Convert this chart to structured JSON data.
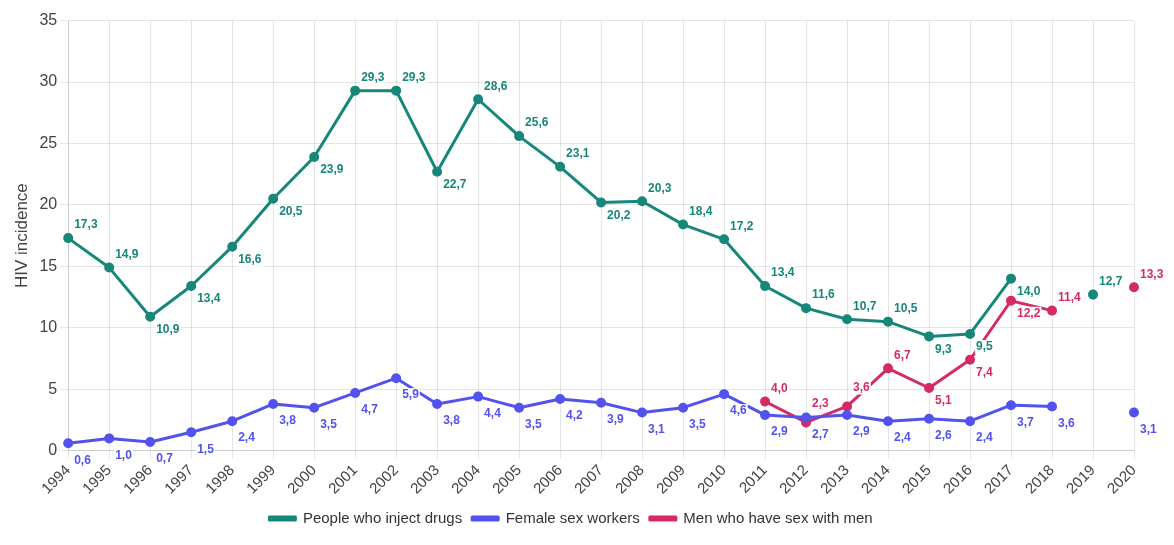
{
  "chart_data": {
    "type": "line",
    "ylabel": "HIV incidence",
    "categories": [
      "1994",
      "1995",
      "1996",
      "1997",
      "1998",
      "1999",
      "2000",
      "2001",
      "2002",
      "2003",
      "2004",
      "2005",
      "2006",
      "2007",
      "2008",
      "2009",
      "2010",
      "2011",
      "2012",
      "2013",
      "2014",
      "2015",
      "2016",
      "2017",
      "2018",
      "2019",
      "2020"
    ],
    "series": [
      {
        "name": "People who inject drugs",
        "color": "#17877a",
        "values": [
          17.3,
          14.9,
          10.9,
          13.4,
          16.6,
          20.5,
          23.9,
          29.3,
          29.3,
          22.7,
          28.6,
          25.6,
          23.1,
          20.2,
          20.3,
          18.4,
          17.2,
          13.4,
          11.6,
          10.7,
          10.5,
          9.3,
          9.5,
          14.0,
          null,
          12.7,
          null
        ],
        "value_labels": [
          "17,3",
          "14,9",
          "10,9",
          "13,4",
          "16,6",
          "20,5",
          "23,9",
          "29,3",
          "29,3",
          "22,7",
          "28,6",
          "25,6",
          "23,1",
          "20,2",
          "20,3",
          "18,4",
          "17,2",
          "13,4",
          "11,6",
          "10,7",
          "10,5",
          "9,3",
          "9,5",
          "14,0",
          null,
          "12,7",
          null
        ]
      },
      {
        "name": "Female sex workers",
        "color": "#5252ee",
        "values": [
          0.6,
          1.0,
          0.7,
          1.5,
          2.4,
          3.8,
          3.5,
          4.7,
          5.9,
          3.8,
          4.4,
          3.5,
          4.2,
          3.9,
          3.1,
          3.5,
          4.6,
          2.9,
          2.7,
          2.9,
          2.4,
          2.6,
          2.4,
          3.7,
          3.6,
          null,
          3.1
        ],
        "value_labels": [
          "0,6",
          "1,0",
          "0,7",
          "1,5",
          "2,4",
          "3,8",
          "3,5",
          "4,7",
          "5,9",
          "3,8",
          "4,4",
          "3,5",
          "4,2",
          "3,9",
          "3,1",
          "3,5",
          "4,6",
          "2,9",
          "2,7",
          "2,9",
          "2,4",
          "2,6",
          "2,4",
          "3,7",
          "3,6",
          null,
          "3,1"
        ]
      },
      {
        "name": "Men who have sex with men",
        "color": "#d42a66",
        "values": [
          null,
          null,
          null,
          null,
          null,
          null,
          null,
          null,
          null,
          null,
          null,
          null,
          null,
          null,
          null,
          null,
          null,
          4.0,
          2.3,
          3.6,
          6.7,
          5.1,
          7.4,
          12.2,
          11.4,
          null,
          13.3
        ],
        "value_labels": [
          null,
          null,
          null,
          null,
          null,
          null,
          null,
          null,
          null,
          null,
          null,
          null,
          null,
          null,
          null,
          null,
          null,
          "4,0",
          "2,3",
          "3,6",
          "6,7",
          "5,1",
          "7,4",
          "12,2",
          "11,4",
          null,
          "13,3"
        ]
      }
    ],
    "ylim": [
      0,
      35
    ],
    "yticks": [
      0,
      5,
      10,
      15,
      20,
      25,
      30,
      35
    ],
    "grid": true,
    "legend": "bottom",
    "marker": "circle"
  }
}
